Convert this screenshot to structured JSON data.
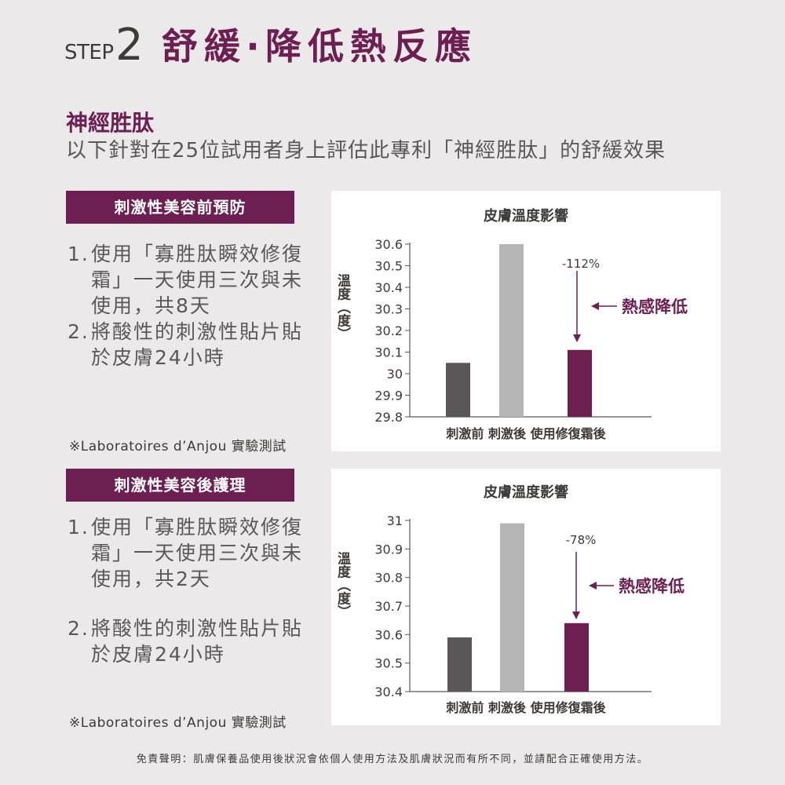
{
  "header": {
    "step_word": "STEP",
    "step_number": "2",
    "headline": "舒緩‧降低熱反應"
  },
  "subtitle": {
    "title": "神經胜肽",
    "description": "以下針對在25位試用者身上評估此專利「神經胜肽」的舒緩效果"
  },
  "sections": [
    {
      "banner": "刺激性美容前預防",
      "steps": [
        {
          "num": "1.",
          "text": "使用「寡胜肽瞬效修復霜」一天使用三次與未使用，共8天"
        },
        {
          "num": "2.",
          "text": "將酸性的刺激性貼片貼於皮膚24小時"
        }
      ],
      "source": "※Laboratoires d’Anjou 實驗測試"
    },
    {
      "banner": "刺激性美容後護理",
      "steps": [
        {
          "num": "1.",
          "text": "使用「寡胜肽瞬效修復霜」一天使用三次與未使用，共2天"
        },
        {
          "num": "2.",
          "text": "將酸性的刺激性貼片貼於皮膚24小時"
        }
      ],
      "source": "※Laboratoires d’Anjou 實驗測試"
    }
  ],
  "chart_data": [
    {
      "type": "bar",
      "title": "皮膚溫度影響",
      "ylabel": "溫度（度）",
      "categories": [
        "刺激前",
        "刺激後",
        "使用修復霜後"
      ],
      "values": [
        30.05,
        30.6,
        30.11
      ],
      "bar_colors": [
        "#595757",
        "#b5b5b6",
        "#6e1f52"
      ],
      "ylim": [
        29.8,
        30.6
      ],
      "yticks": [
        29.8,
        29.9,
        30,
        30.1,
        30.2,
        30.3,
        30.4,
        30.5,
        30.6
      ],
      "ytick_labels": [
        "29.8",
        "29.9",
        "30",
        "30.1",
        "30.2",
        "30.3",
        "30.4",
        "30.5",
        "30.6"
      ],
      "annotation_value": "-112%",
      "annotation_label": "熱感降低",
      "grid": false
    },
    {
      "type": "bar",
      "title": "皮膚溫度影響",
      "ylabel": "溫度（度）",
      "categories": [
        "刺激前",
        "刺激後",
        "使用修復霜後"
      ],
      "values": [
        30.59,
        30.99,
        30.64
      ],
      "bar_colors": [
        "#595757",
        "#b5b5b6",
        "#6e1f52"
      ],
      "ylim": [
        30.4,
        31
      ],
      "yticks": [
        30.4,
        30.5,
        30.6,
        30.7,
        30.8,
        30.9,
        31
      ],
      "ytick_labels": [
        "30.4",
        "30.5",
        "30.6",
        "30.7",
        "30.8",
        "30.9",
        "31"
      ],
      "annotation_value": "-78%",
      "annotation_label": "熱感降低",
      "grid": false
    }
  ],
  "colors": {
    "accent": "#6e1f52",
    "background": "#ebe9ea",
    "text": "#595757"
  },
  "disclaimer": "免責聲明：肌膚保養品使用後狀況會依個人使用方法及肌膚狀況而有所不同，並請配合正確使用方法。"
}
